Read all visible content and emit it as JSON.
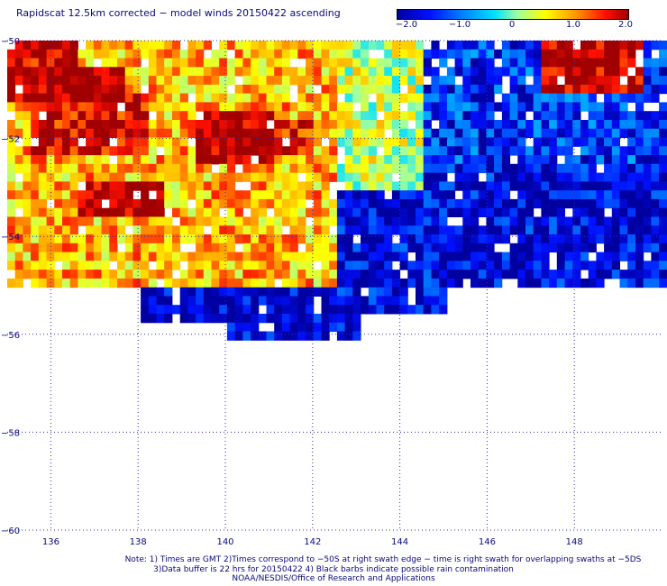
{
  "title": "Rapidscat 12.5km corrected − model winds 20150422 ascending",
  "colorbar": {
    "ticks": [
      "−2.0",
      "−1.0",
      "0",
      "1.0",
      "2.0"
    ],
    "values": [
      -2.0,
      -1.0,
      0,
      1.0,
      2.0
    ]
  },
  "notes": {
    "line1": "Note: 1) Times are GMT 2)Times correspond to −50S at right swath edge − time is right swath for overlapping swaths at −5DS",
    "line2": "3)Data buffer is 22 hrs for 20150422 4) Black barbs indicate possible rain contamination",
    "line3": "NOAA/NESDIS/Office of Research and Applications"
  },
  "chart_data": {
    "type": "heatmap",
    "title": "Rapidscat 12.5km corrected − model winds 20150422 ascending",
    "x_ticks": [
      "136",
      "138",
      "140",
      "142",
      "144",
      "146",
      "148"
    ],
    "x_tick_values": [
      136,
      138,
      140,
      142,
      144,
      146,
      148
    ],
    "y_ticks": [
      "−50",
      "−52",
      "−54",
      "−56",
      "−58",
      "−60"
    ],
    "y_tick_values": [
      -50,
      -52,
      -54,
      -56,
      -58,
      -60
    ],
    "xlim": [
      135.0,
      150.0
    ],
    "ylim": [
      -60,
      -50
    ],
    "value_range": [
      -2.0,
      2.0
    ],
    "colormap": [
      "#0000a0",
      "#0010ff",
      "#0080ff",
      "#00e0ff",
      "#a0ffa0",
      "#ffff00",
      "#ff9000",
      "#ff1000",
      "#a00000"
    ],
    "grid": true,
    "regions": [
      {
        "lon": [
          135.0,
          137.6
        ],
        "lat": [
          -51.2,
          -50.5
        ],
        "value": 2.0
      },
      {
        "lon": [
          135.5,
          138.2
        ],
        "lat": [
          -52.2,
          -51.0
        ],
        "value": 1.7
      },
      {
        "lon": [
          136.5,
          138.5
        ],
        "lat": [
          -53.5,
          -52.7
        ],
        "value": 2.0
      },
      {
        "lon": [
          139.2,
          141.0
        ],
        "lat": [
          -52.5,
          -51.3
        ],
        "value": 2.0
      },
      {
        "lon": [
          140.8,
          142.0
        ],
        "lat": [
          -52.3,
          -51.6
        ],
        "value": 1.6
      },
      {
        "lon": [
          147.2,
          149.5
        ],
        "lat": [
          -50.9,
          -50.0
        ],
        "value": 1.9
      },
      {
        "lon": [
          135.0,
          136.5
        ],
        "lat": [
          -50.5,
          -50.0
        ],
        "value": 1.8
      },
      {
        "lon": [
          135.0,
          142.5
        ],
        "lat": [
          -55.0,
          -50.0
        ],
        "value": 0.8
      },
      {
        "lon": [
          142.5,
          144.5
        ],
        "lat": [
          -53.0,
          -50.0
        ],
        "value": 0.2
      },
      {
        "lon": [
          144.5,
          150.0
        ],
        "lat": [
          -52.5,
          -50.0
        ],
        "value": -1.4
      },
      {
        "lon": [
          142.0,
          150.0
        ],
        "lat": [
          -55.5,
          -52.5
        ],
        "value": -1.7
      },
      {
        "lon": [
          138.0,
          144.0
        ],
        "lat": [
          -56.0,
          -54.5
        ],
        "value": -1.8
      }
    ]
  }
}
